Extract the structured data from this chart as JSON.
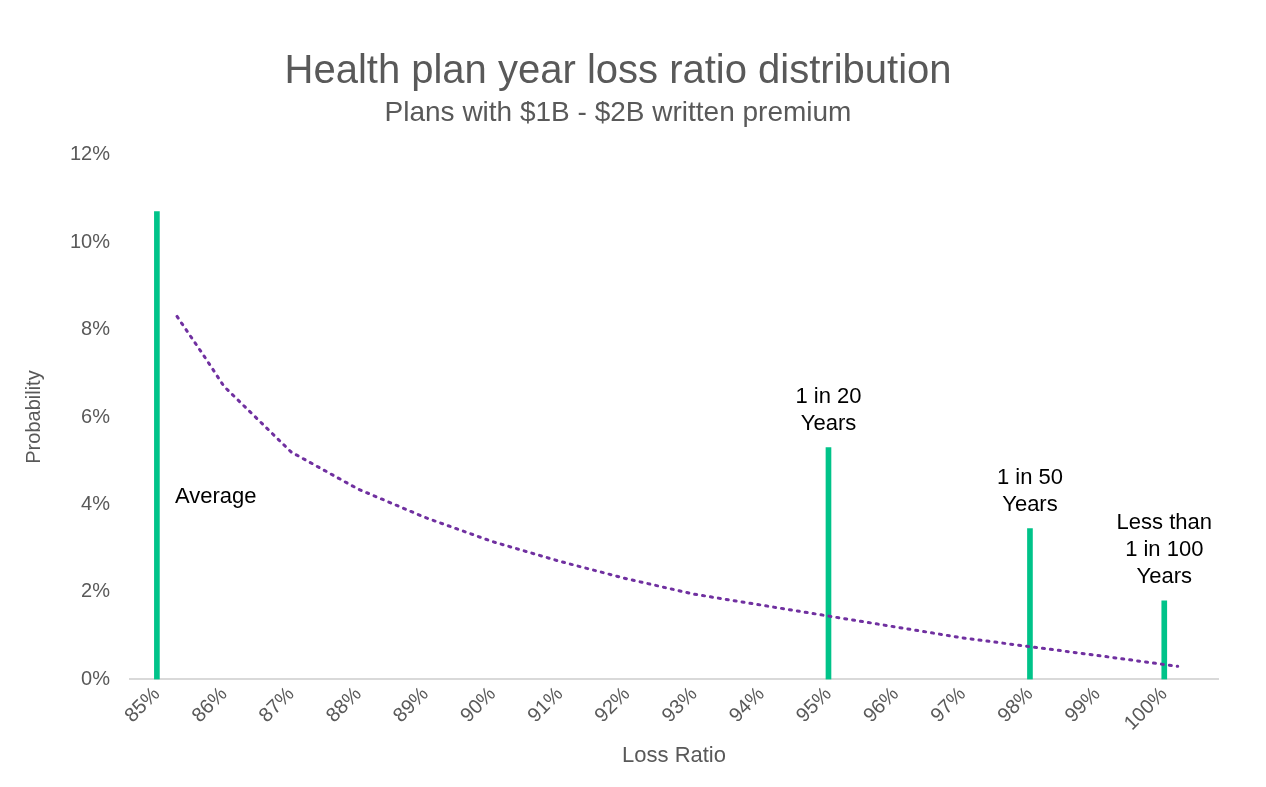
{
  "chart_data": {
    "type": "line",
    "title": "Health plan year loss ratio distribution",
    "subtitle": "Plans with $1B - $2B written premium",
    "xlabel": "Loss Ratio",
    "ylabel": "Probability",
    "xlim": [
      84.6,
      100.8
    ],
    "xticks": [
      {
        "value": 85,
        "label": "85%"
      },
      {
        "value": 86,
        "label": "86%"
      },
      {
        "value": 87,
        "label": "87%"
      },
      {
        "value": 88,
        "label": "88%"
      },
      {
        "value": 89,
        "label": "89%"
      },
      {
        "value": 90,
        "label": "90%"
      },
      {
        "value": 91,
        "label": "91%"
      },
      {
        "value": 92,
        "label": "92%"
      },
      {
        "value": 93,
        "label": "93%"
      },
      {
        "value": 94,
        "label": "94%"
      },
      {
        "value": 95,
        "label": "95%"
      },
      {
        "value": 96,
        "label": "96%"
      },
      {
        "value": 97,
        "label": "97%"
      },
      {
        "value": 98,
        "label": "98%"
      },
      {
        "value": 99,
        "label": "99%"
      },
      {
        "value": 100,
        "label": "100%"
      }
    ],
    "ylim": [
      0,
      12
    ],
    "yticks": [
      {
        "value": 0,
        "label": "0%"
      },
      {
        "value": 2,
        "label": "2%"
      },
      {
        "value": 4,
        "label": "4%"
      },
      {
        "value": 6,
        "label": "6%"
      },
      {
        "value": 8,
        "label": "8%"
      },
      {
        "value": 10,
        "label": "10%"
      },
      {
        "value": 12,
        "label": "12%"
      }
    ],
    "grid": false,
    "legend": false,
    "series": [
      {
        "color": "#7030a0",
        "line_style": "dotted",
        "marker": "none",
        "x": [
          85.3,
          85.7,
          86,
          87,
          88,
          89,
          90,
          91,
          92,
          93,
          94,
          95,
          96,
          97,
          98,
          99,
          100.2
        ],
        "values": [
          8.3,
          7.4,
          6.7,
          5.2,
          4.35,
          3.7,
          3.15,
          2.7,
          2.3,
          1.95,
          1.7,
          1.45,
          1.2,
          0.95,
          0.75,
          0.55,
          0.3
        ]
      },
      {
        "type": "bar",
        "color": "#00c389",
        "x": [
          85,
          95,
          98,
          100
        ],
        "values": [
          10.7,
          5.3,
          3.45,
          1.8
        ]
      }
    ],
    "annotations": [
      "Average",
      "1 in 20\nYears",
      "1 in 50\nYears",
      "Less than\n1 in 100\nYears"
    ]
  }
}
